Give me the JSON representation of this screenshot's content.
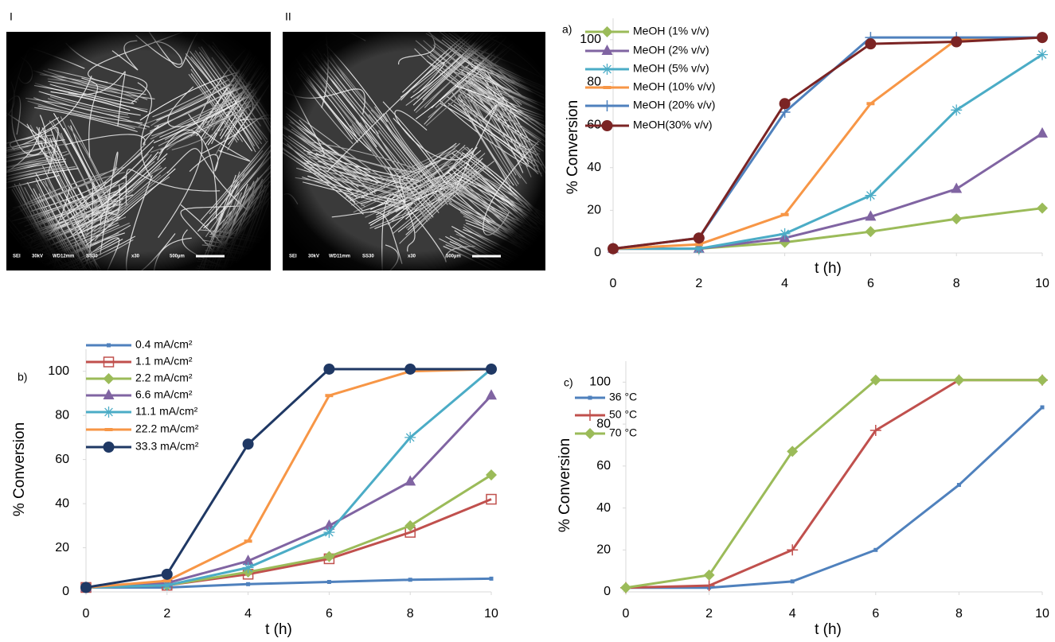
{
  "images": [
    {
      "label": "I",
      "caption": [
        "SEI",
        "30kV",
        "WD12mm",
        "SS30",
        "x30",
        "500µm"
      ]
    },
    {
      "label": "II",
      "caption": [
        "SEI",
        "30kV",
        "WD11mm",
        "SS30",
        "x30",
        "500µm"
      ]
    }
  ],
  "chart_data": [
    {
      "type": "line",
      "panel_label": "a)",
      "xlabel": "t (h)",
      "ylabel": "% Conversion",
      "x": [
        0,
        2,
        4,
        6,
        8,
        10
      ],
      "xlim": [
        0,
        10
      ],
      "xticks": [
        0,
        2,
        4,
        6,
        8,
        10
      ],
      "ylim": [
        0,
        110
      ],
      "yticks": [
        0,
        20,
        40,
        60,
        80,
        100
      ],
      "legend": "upper left",
      "series": [
        {
          "name": "MeOH (1% v/v)",
          "color": "#9bbb59",
          "marker": "diamond",
          "values": [
            2,
            2,
            5,
            10,
            16,
            21
          ]
        },
        {
          "name": "MeOH (2% v/v)",
          "color": "#8064a2",
          "marker": "triangle",
          "values": [
            2,
            2,
            7,
            17,
            30,
            56
          ]
        },
        {
          "name": "MeOH (5% v/v)",
          "color": "#4bacc6",
          "marker": "asterisk",
          "values": [
            2,
            2,
            9,
            27,
            67,
            93
          ]
        },
        {
          "name": "MeOH (10% v/v)",
          "color": "#f79646",
          "marker": "dash",
          "values": [
            2,
            4,
            18,
            70,
            100,
            101
          ]
        },
        {
          "name": "MeOH (20%  v/v)",
          "color": "#4f81bd",
          "marker": "plus",
          "values": [
            2,
            7,
            66,
            101,
            101,
            101
          ]
        },
        {
          "name": "MeOH(30% v/v)",
          "color": "#7b2424",
          "marker": "circle",
          "values": [
            2,
            7,
            70,
            98,
            99,
            101
          ]
        }
      ]
    },
    {
      "type": "line",
      "panel_label": "b)",
      "xlabel": "t (h)",
      "ylabel": "% Conversion",
      "x": [
        0,
        2,
        4,
        6,
        8,
        10
      ],
      "xlim": [
        0,
        10
      ],
      "xticks": [
        0,
        2,
        4,
        6,
        8,
        10
      ],
      "ylim": [
        0,
        110
      ],
      "yticks": [
        0,
        20,
        40,
        60,
        80,
        100
      ],
      "legend": "upper left",
      "series": [
        {
          "name": "0.4 mA/cm²",
          "color": "#4f81bd",
          "marker": "small-square",
          "values": [
            2,
            2,
            3.5,
            4.5,
            5.5,
            6
          ]
        },
        {
          "name": "1.1 mA/cm²",
          "color": "#c0504d",
          "marker": "open-square",
          "values": [
            2,
            3,
            8,
            15,
            27,
            42
          ]
        },
        {
          "name": "2.2 mA/cm²",
          "color": "#9bbb59",
          "marker": "diamond",
          "values": [
            2,
            3,
            9,
            16,
            30,
            53
          ]
        },
        {
          "name": "6.6 mA/cm²",
          "color": "#8064a2",
          "marker": "triangle",
          "values": [
            2,
            4,
            14,
            30,
            50,
            89
          ]
        },
        {
          "name": "11.1 mA/cm²",
          "color": "#4bacc6",
          "marker": "asterisk",
          "values": [
            2,
            3,
            11,
            27,
            70,
            101
          ]
        },
        {
          "name": "22.2 mA/cm²",
          "color": "#f79646",
          "marker": "dash",
          "values": [
            2,
            5,
            23,
            89,
            100,
            101
          ]
        },
        {
          "name": "33.3 mA/cm²",
          "color": "#1f3864",
          "marker": "circle",
          "values": [
            2,
            8,
            67,
            101,
            101,
            101
          ]
        }
      ]
    },
    {
      "type": "line",
      "panel_label": "c)",
      "xlabel": "t (h)",
      "ylabel": "% Conversion",
      "x": [
        0,
        2,
        4,
        6,
        8,
        10
      ],
      "xlim": [
        0,
        10
      ],
      "xticks": [
        0,
        2,
        4,
        6,
        8,
        10
      ],
      "ylim": [
        0,
        110
      ],
      "yticks": [
        0,
        20,
        40,
        60,
        80,
        100
      ],
      "legend": "upper left",
      "series": [
        {
          "name": "36 °C",
          "color": "#4f81bd",
          "marker": "small-square",
          "values": [
            2,
            2,
            5,
            20,
            51,
            88
          ]
        },
        {
          "name": "50 °C",
          "color": "#c0504d",
          "marker": "plus",
          "values": [
            2,
            3,
            20,
            77,
            101,
            101
          ]
        },
        {
          "name": "70 °C",
          "color": "#9bbb59",
          "marker": "diamond",
          "values": [
            2,
            8,
            67,
            101,
            101,
            101
          ]
        }
      ]
    }
  ]
}
